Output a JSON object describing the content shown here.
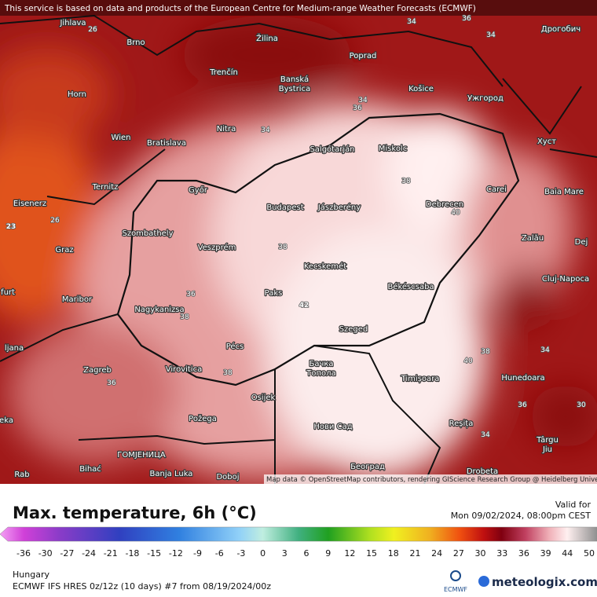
{
  "notice": "This service is based on data and products of the European Centre for Medium-range Weather Forecasts (ECMWF)",
  "cities": [
    "Jihlava",
    "Brno",
    "Žilina",
    "Poprad",
    "Дрогобич",
    "Trenčín",
    "Banská",
    "Bystrica",
    "Horn",
    "Košice",
    "Ужгород",
    "Wien",
    "Bratislava",
    "Nitra",
    "Хуст",
    "Salgótarján",
    "Miskolc",
    "Ternitz",
    "Győr",
    "Carei",
    "Baia Mare",
    "Eisenerz",
    "Budapest",
    "Jászberény",
    "Debrecen",
    "Szombathely",
    "Zalău",
    "Graz",
    "Veszprém",
    "Dej",
    "Kecskemét",
    "Cluj-Napoca",
    "Maribor",
    "Paks",
    "Békéscsaba",
    "Nagykanizsa",
    "Szeged",
    "Pécs",
    "Zagreb",
    "Virovitica",
    "Бачка",
    "Топола",
    "Timișoara",
    "Hunedoara",
    "Osijek",
    "Požega",
    "Нови Сад",
    "Reșița",
    "Târgu",
    "Jiu",
    "ГОМЈЕНИЦА",
    "Bihać",
    "Banja Luka",
    "Doboj",
    "Rab",
    "Београд",
    "Drobeta",
    "ljana",
    "furt",
    "eka"
  ],
  "contour_labels": [
    "26",
    "34",
    "36",
    "34",
    "34",
    "36",
    "34",
    "38",
    "40",
    "26",
    "23",
    "38",
    "42",
    "36",
    "38",
    "38",
    "40",
    "38",
    "34",
    "36",
    "36",
    "34",
    "30"
  ],
  "attribution": "Map data © OpenStreetMap contributors, rendering GIScience Research Group @ Heidelberg University",
  "legend": {
    "title": "Max. temperature, 6h (°C)",
    "ticks": [
      -36,
      -30,
      -27,
      -24,
      -21,
      -18,
      -15,
      -12,
      -9,
      -6,
      -3,
      0,
      3,
      6,
      9,
      12,
      15,
      18,
      21,
      24,
      27,
      30,
      33,
      36,
      39,
      44,
      50
    ]
  },
  "valid": {
    "label": "Valid for",
    "time": "Mon 09/02/2024, 08:00pm CEST"
  },
  "region": "Hungary",
  "model": "ECMWF IFS HRES 0z/12z (10 days) #7 from  08/19/2024/00z",
  "logos": [
    "ECMWF",
    "meteologix.com"
  ]
}
